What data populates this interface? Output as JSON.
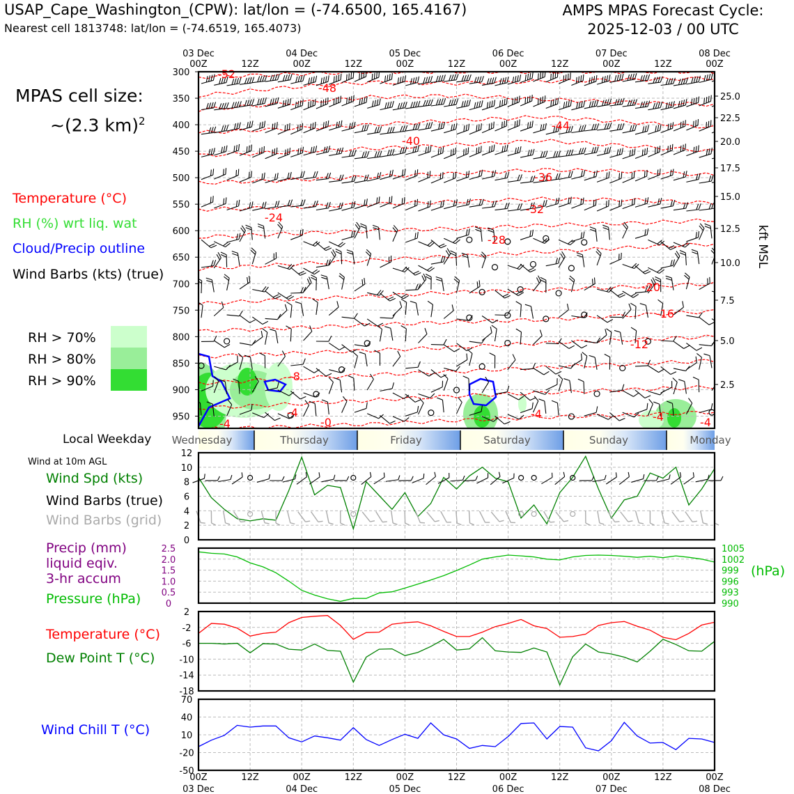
{
  "header": {
    "station": "USAP_Cape_Washington_(CPW): lat/lon = (-74.6500, 165.4167)",
    "nearest": "Nearest cell 1813748: lat/lon = (-74.6519, 165.4073)",
    "cycle_line1": "AMPS MPAS Forecast Cycle:",
    "cycle_line2": "2025-12-03 / 00 UTC"
  },
  "cell_size": {
    "line1": "MPAS cell size:",
    "line2": "~(2.3 km)",
    "sup": "2"
  },
  "legend": {
    "temperature": "Temperature (°C)",
    "rh": "RH (%) wrt liq. wat",
    "cloud": "Cloud/Precip outline",
    "wind": "Wind Barbs (kts) (true)",
    "rh70": "RH > 70%",
    "rh80": "RH > 80%",
    "rh90": "RH > 90%"
  },
  "colors": {
    "temperature": "#ff0000",
    "rh": "#33dd33",
    "cloud": "#0000ff",
    "rh70": "#ccffcc",
    "rh80": "#99ee99",
    "rh90": "#33dd33",
    "wind_spd": "#008000",
    "barbs_grid": "#aaaaaa",
    "precip": "#800080",
    "pressure": "#00bb00",
    "dewpoint": "#008000",
    "windchill": "#0000ff"
  },
  "time_axis": {
    "top_ticks": [
      {
        "top": "03 Dec",
        "bottom": "00Z"
      },
      {
        "top": "",
        "bottom": "12Z"
      },
      {
        "top": "04 Dec",
        "bottom": "00Z"
      },
      {
        "top": "",
        "bottom": "12Z"
      },
      {
        "top": "05 Dec",
        "bottom": "00Z"
      },
      {
        "top": "",
        "bottom": "12Z"
      },
      {
        "top": "06 Dec",
        "bottom": "00Z"
      },
      {
        "top": "",
        "bottom": "12Z"
      },
      {
        "top": "07 Dec",
        "bottom": "00Z"
      },
      {
        "top": "",
        "bottom": "12Z"
      },
      {
        "top": "08 Dec",
        "bottom": "00Z"
      }
    ]
  },
  "weekday": {
    "label": "Local Weekday",
    "days": [
      "Wednesday",
      "Thursday",
      "Friday",
      "Saturday",
      "Sunday",
      "Monday"
    ]
  },
  "panel_labels": {
    "wind10m": "Wind at 10m AGL",
    "wind_spd": "Wind Spd (kts)",
    "wind_barbs_true": "Wind Barbs (true)",
    "wind_barbs_grid": "Wind Barbs (grid)",
    "precip_1": "Precip (mm)",
    "precip_2": "liquid eqiv.",
    "precip_3": "3-hr accum",
    "pressure": "Pressure (hPa)",
    "pressure_unit": "(hPa)",
    "temperature": "Temperature (°C)",
    "dewpoint": "Dew Point T (°C)",
    "windchill": "Wind Chill T (°C)",
    "kft": "kft MSL"
  },
  "chart_data": [
    {
      "type": "line",
      "name": "sounding",
      "x_hours": [
        0,
        120
      ],
      "y_pressure_ticks": [
        300,
        350,
        400,
        450,
        500,
        550,
        600,
        650,
        700,
        750,
        800,
        850,
        900,
        950
      ],
      "y_kft_ticks": [
        "25.0",
        "22.5",
        "20.0",
        "17.5",
        "15.0",
        "12.5",
        "10.0",
        "7.5",
        "5.0",
        "2.5"
      ],
      "isotherm_labels": [
        "-52",
        "-48",
        "-44",
        "-40",
        "-36",
        "-32",
        "-28",
        "-24",
        "-20",
        "-16",
        "-12",
        "-8",
        "-4",
        "-4",
        "-4",
        "-4",
        "-0",
        "-4"
      ],
      "isotherms": [
        {
          "p": [
            310,
            305,
            300,
            300,
            300,
            300,
            300
          ]
        },
        {
          "p": [
            345,
            330,
            320,
            322,
            318,
            315,
            312
          ]
        },
        {
          "p": [
            372,
            360,
            348,
            345,
            352,
            358,
            362
          ]
        },
        {
          "p": [
            415,
            408,
            400,
            392,
            385,
            395,
            405
          ]
        },
        {
          "p": [
            458,
            452,
            445,
            438,
            430,
            440,
            450
          ]
        },
        {
          "p": [
            510,
            505,
            498,
            492,
            485,
            488,
            495
          ]
        },
        {
          "p": [
            560,
            556,
            550,
            545,
            540,
            542,
            548
          ]
        },
        {
          "p": [
            612,
            606,
            600,
            596,
            590,
            586,
            580
          ]
        },
        {
          "p": [
            672,
            664,
            656,
            648,
            640,
            632,
            625
          ]
        },
        {
          "p": [
            738,
            730,
            724,
            716,
            712,
            706,
            700
          ]
        },
        {
          "p": [
            790,
            784,
            778,
            772,
            768,
            760,
            752
          ]
        },
        {
          "p": [
            838,
            832,
            826,
            820,
            812,
            806,
            800
          ]
        },
        {
          "p": [
            888,
            880,
            872,
            866,
            858,
            852,
            845
          ]
        },
        {
          "p": [
            935,
            928,
            920,
            912,
            906,
            900,
            895
          ]
        },
        {
          "p": [
            975,
            970,
            965,
            958,
            952,
            948,
            942
          ]
        }
      ]
    },
    {
      "type": "line",
      "name": "wind10m",
      "ylim": [
        0,
        12
      ],
      "y_ticks": [
        0,
        2,
        4,
        6,
        8,
        10,
        12
      ],
      "series": [
        {
          "values": [
            8.6,
            5.8,
            4.2,
            2.9,
            2.6,
            2.9,
            2.7,
            6.8,
            11.4,
            6.2,
            7.5,
            7.2,
            1.5,
            8.0,
            6.1,
            4.2,
            6.5,
            3.2,
            5.0,
            8.6,
            7.0,
            8.8,
            10.0,
            8.5,
            8.0,
            3.0,
            4.8,
            2.2,
            6.5,
            8.6,
            11.5,
            7.0,
            3.0,
            5.5,
            6.0,
            9.2,
            8.5,
            10.0,
            4.8,
            7.0,
            9.8
          ]
        }
      ]
    },
    {
      "type": "line",
      "name": "precip_pressure",
      "left_ylim": [
        0,
        2.5
      ],
      "left_ticks": [
        "0",
        "0.5",
        "1.0",
        "1.5",
        "2.0",
        "2.5"
      ],
      "right_ylim": [
        990,
        1005
      ],
      "right_ticks": [
        "990",
        "993",
        "996",
        "999",
        "1002",
        "1005"
      ],
      "series": [
        {
          "values": [
            1004.0,
            1003.6,
            1003.4,
            1002.6,
            1001.0,
            999.9,
            998.3,
            996.0,
            993.5,
            992.2,
            991.2,
            990.5,
            991.3,
            991.3,
            992.8,
            993.1,
            994.1,
            995.2,
            996.3,
            997.5,
            998.9,
            1000.4,
            1002.0,
            1002.6,
            1003.1,
            1002.9,
            1002.6,
            1002.0,
            1001.8,
            1002.6,
            1003.0,
            1003.1,
            1003.0,
            1002.8,
            1002.5,
            1002.8,
            1002.4,
            1002.9,
            1002.5,
            1002.0,
            1001.2
          ]
        }
      ]
    },
    {
      "type": "line",
      "name": "temp_dewpoint",
      "ylim": [
        -18,
        2
      ],
      "y_ticks": [
        "2",
        "-2",
        "-6",
        "-10",
        "-14",
        "-18"
      ],
      "series": [
        {
          "values": [
            -3.5,
            -1.0,
            -1.2,
            -2.2,
            -4.2,
            -3.5,
            -3.2,
            -0.8,
            0.5,
            0.8,
            1.0,
            -1.5,
            -5.0,
            -3.3,
            -3.2,
            -1.2,
            -0.8,
            -0.6,
            -1.6,
            -3.0,
            -4.3,
            -4.3,
            -3.2,
            -1.8,
            -1.0,
            0.0,
            -1.6,
            -2.3,
            -4.5,
            -4.3,
            -3.7,
            -1.5,
            -0.8,
            -0.5,
            -1.7,
            -2.7,
            -4.5,
            -5.1,
            -3.5,
            -1.4,
            -0.7
          ]
        },
        {
          "values": [
            -6.0,
            -6.0,
            -6.2,
            -6.0,
            -8.4,
            -6.1,
            -6.2,
            -7.5,
            -7.7,
            -6.2,
            -7.8,
            -8.0,
            -15.8,
            -9.5,
            -7.5,
            -7.4,
            -9.1,
            -8.3,
            -6.8,
            -5.0,
            -7.7,
            -7.4,
            -4.6,
            -7.9,
            -8.2,
            -8.3,
            -7.2,
            -8.2,
            -16.5,
            -9.4,
            -6.2,
            -8.2,
            -8.7,
            -9.5,
            -10.7,
            -8.0,
            -5.0,
            -6.3,
            -7.9,
            -8.0,
            -5.5
          ]
        }
      ]
    },
    {
      "type": "line",
      "name": "windchill",
      "ylim": [
        -50,
        70
      ],
      "y_ticks": [
        "70",
        "40",
        "10",
        "-20",
        "-50"
      ],
      "series": [
        {
          "values": [
            -10.0,
            1.0,
            9.0,
            26.0,
            23.0,
            25.0,
            25.0,
            5.0,
            -2.0,
            8.0,
            5.0,
            1.0,
            22.0,
            2.0,
            -8.0,
            2.0,
            11.0,
            4.0,
            30.0,
            10.0,
            3.0,
            -13.0,
            -8.0,
            -10.0,
            7.0,
            29.0,
            30.0,
            3.0,
            24.0,
            23.0,
            -12.0,
            -17.0,
            0.0,
            31.0,
            8.0,
            -4.0,
            -3.0,
            -15.0,
            4.0,
            3.0,
            -3.0
          ]
        }
      ]
    }
  ]
}
